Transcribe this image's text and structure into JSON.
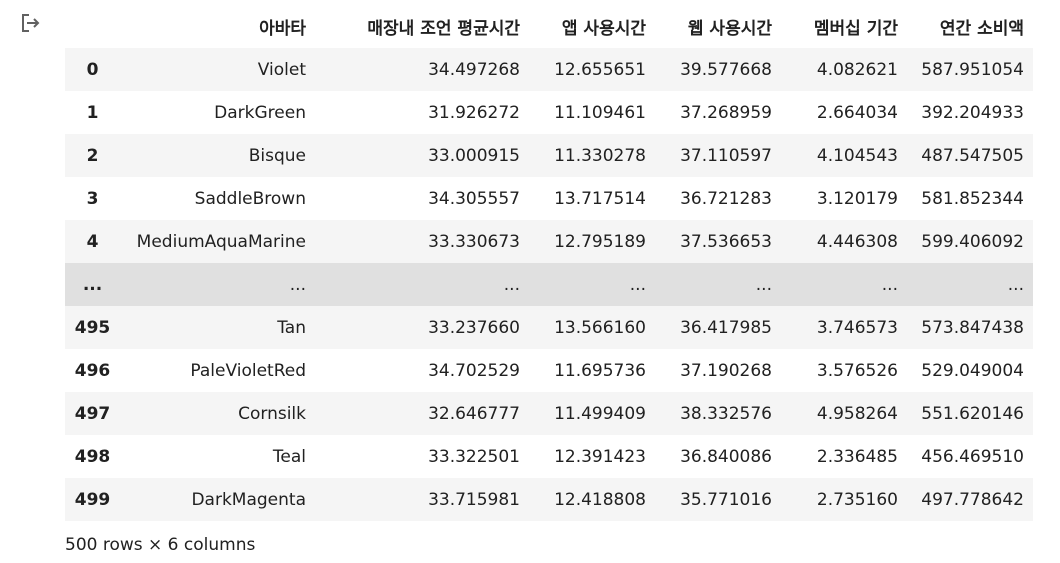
{
  "output_icon": "output-redirect-icon",
  "table": {
    "columns": [
      "",
      "아바타",
      "매장내 조언 평균시간",
      "앱 사용시간",
      "웹 사용시간",
      "멤버십 기간",
      "연간 소비액"
    ],
    "rows": [
      [
        "0",
        "Violet",
        "34.497268",
        "12.655651",
        "39.577668",
        "4.082621",
        "587.951054"
      ],
      [
        "1",
        "DarkGreen",
        "31.926272",
        "11.109461",
        "37.268959",
        "2.664034",
        "392.204933"
      ],
      [
        "2",
        "Bisque",
        "33.000915",
        "11.330278",
        "37.110597",
        "4.104543",
        "487.547505"
      ],
      [
        "3",
        "SaddleBrown",
        "34.305557",
        "13.717514",
        "36.721283",
        "3.120179",
        "581.852344"
      ],
      [
        "4",
        "MediumAquaMarine",
        "33.330673",
        "12.795189",
        "37.536653",
        "4.446308",
        "599.406092"
      ],
      [
        "...",
        "...",
        "...",
        "...",
        "...",
        "...",
        "..."
      ],
      [
        "495",
        "Tan",
        "33.237660",
        "13.566160",
        "36.417985",
        "3.746573",
        "573.847438"
      ],
      [
        "496",
        "PaleVioletRed",
        "34.702529",
        "11.695736",
        "37.190268",
        "3.576526",
        "529.049004"
      ],
      [
        "497",
        "Cornsilk",
        "32.646777",
        "11.499409",
        "38.332576",
        "4.958264",
        "551.620146"
      ],
      [
        "498",
        "Teal",
        "33.322501",
        "12.391423",
        "36.840086",
        "2.336485",
        "456.469510"
      ],
      [
        "499",
        "DarkMagenta",
        "33.715981",
        "12.418808",
        "35.771016",
        "2.735160",
        "497.778642"
      ]
    ]
  },
  "footer": {
    "shape_text": "500 rows × 6 columns"
  }
}
